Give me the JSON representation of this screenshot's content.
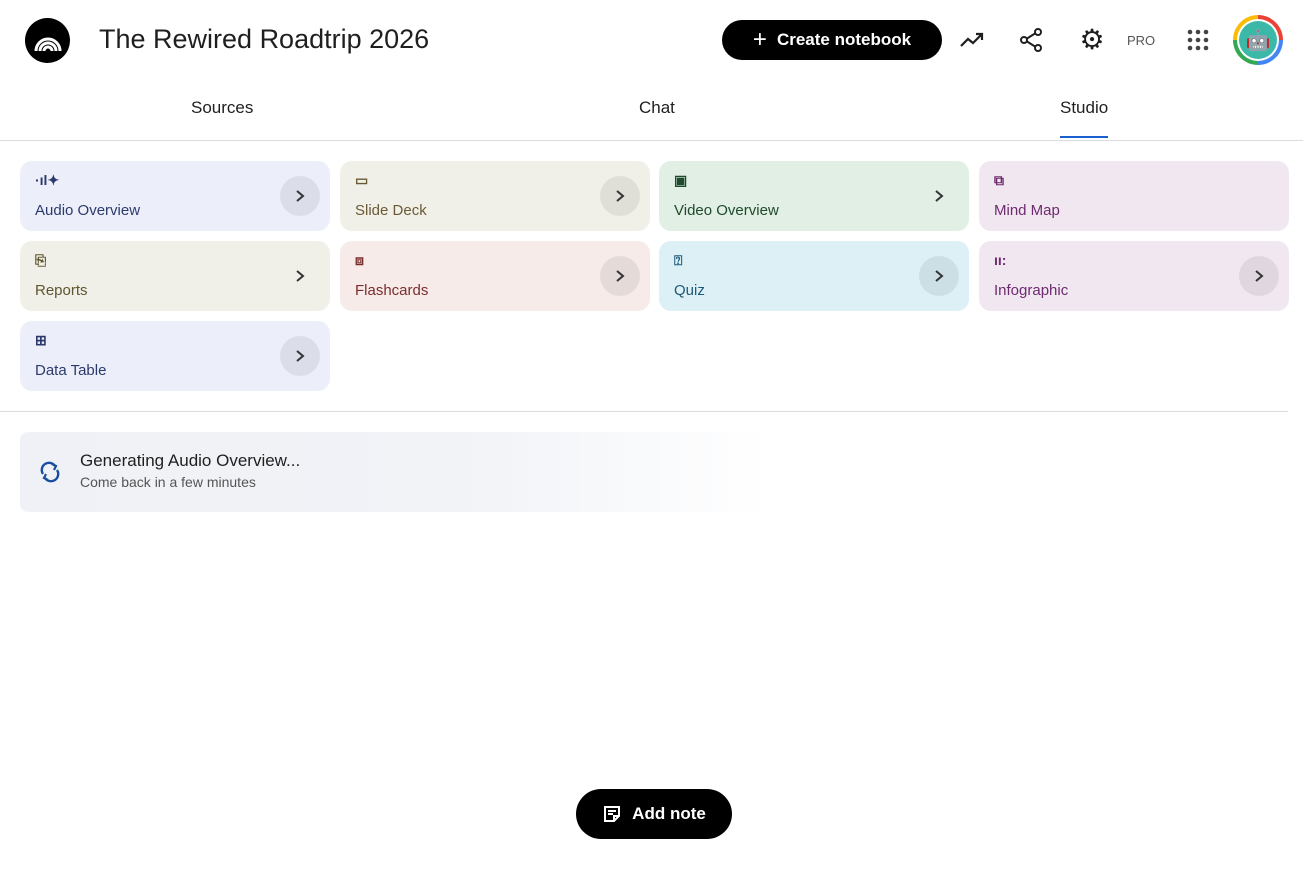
{
  "header": {
    "title": "The Rewired Roadtrip 2026",
    "create_label": "Create notebook",
    "pro_label": "PRO"
  },
  "tabs": [
    {
      "label": "Sources"
    },
    {
      "label": "Chat"
    },
    {
      "label": "Studio",
      "active": true
    }
  ],
  "studio": {
    "cards": [
      {
        "label": "Audio Overview",
        "icon": "audio-sparkle-icon",
        "bg": "#eceffa",
        "color": "#2b3a6b"
      },
      {
        "label": "Slide Deck",
        "icon": "slide-deck-icon",
        "bg": "#f1f0e8",
        "color": "#6b5a36"
      },
      {
        "label": "Video Overview",
        "icon": "video-icon",
        "bg": "#e1efe4",
        "color": "#1f4a2c"
      },
      {
        "label": "Mind Map",
        "icon": "mind-map-icon",
        "bg": "#f1e7f1",
        "color": "#6e2a6e"
      },
      {
        "label": "Reports",
        "icon": "reports-icon",
        "bg": "#f1f0e8",
        "color": "#5f5530"
      },
      {
        "label": "Flashcards",
        "icon": "flashcards-icon",
        "bg": "#f6ebe9",
        "color": "#7a2d2d"
      },
      {
        "label": "Quiz",
        "icon": "quiz-icon",
        "bg": "#dcf0f6",
        "color": "#1c5a78"
      },
      {
        "label": "Infographic",
        "icon": "infographic-icon",
        "bg": "#f1e7f1",
        "color": "#6e2a6e"
      },
      {
        "label": "Data Table",
        "icon": "data-table-icon",
        "bg": "#eceffa",
        "color": "#2b3a6b"
      }
    ]
  },
  "generating": {
    "title": "Generating Audio Overview...",
    "subtitle": "Come back in a few minutes"
  },
  "footer": {
    "add_note_label": "Add note"
  }
}
